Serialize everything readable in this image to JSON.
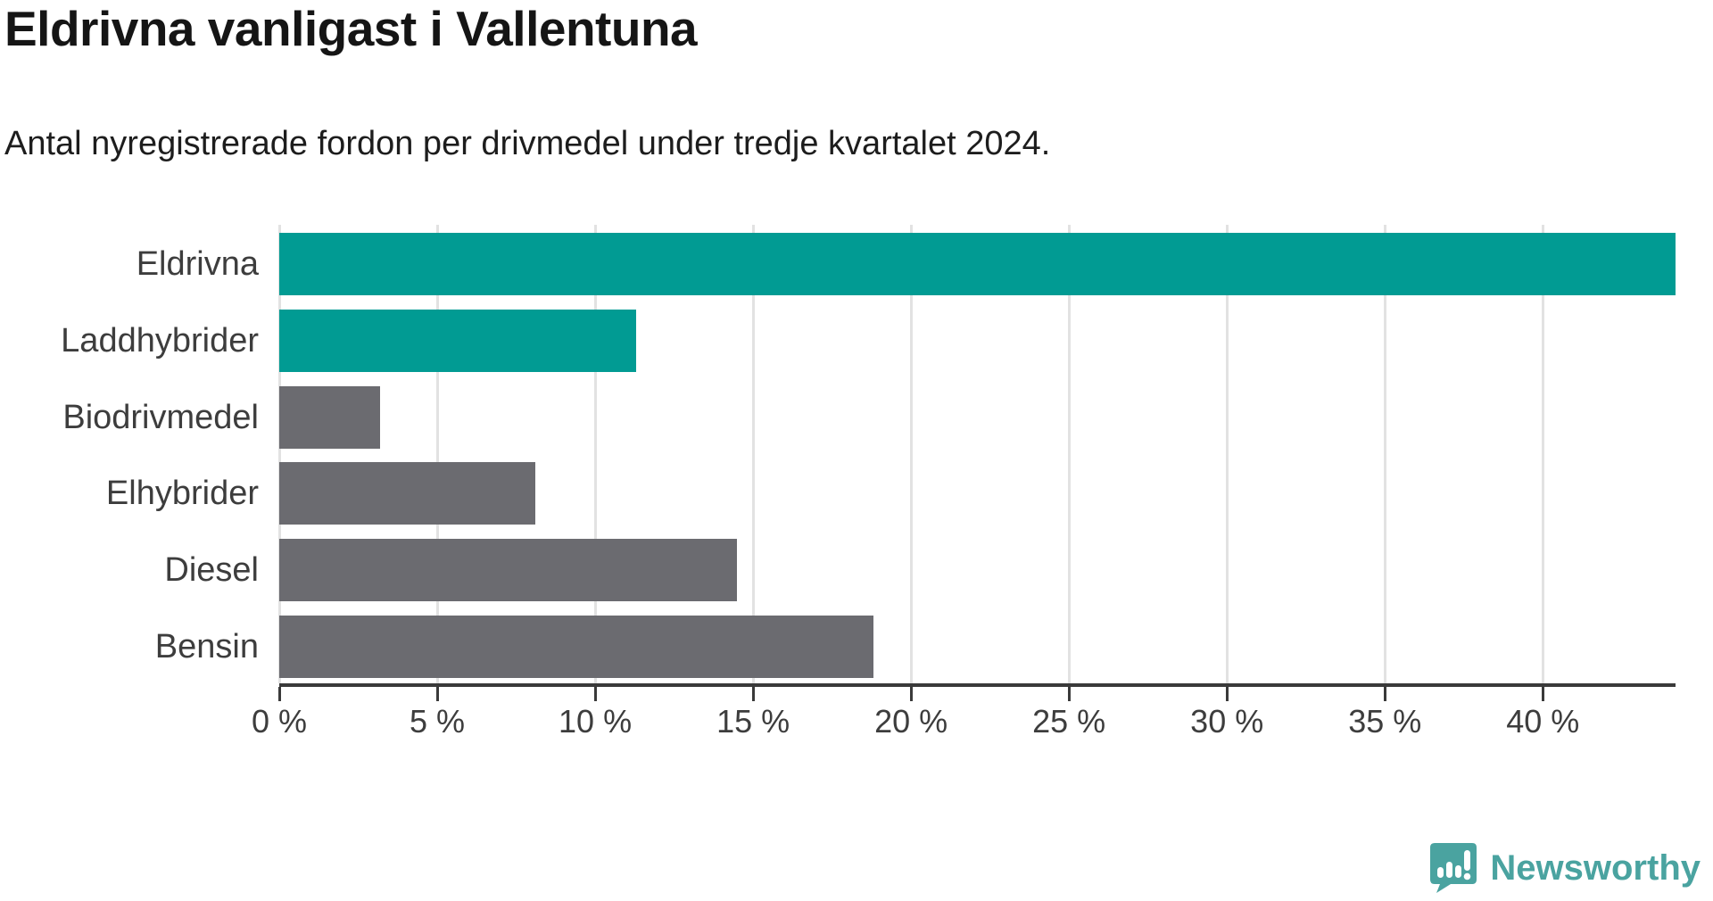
{
  "title": "Eldrivna vanligast i Vallentuna",
  "subtitle": "Antal nyregistrerade fordon per drivmedel under tredje kvartalet 2024.",
  "chart_data": {
    "type": "bar",
    "orientation": "horizontal",
    "title": "Eldrivna vanligast i Vallentuna",
    "subtitle": "Antal nyregistrerade fordon per drivmedel under tredje kvartalet 2024.",
    "categories": [
      "Eldrivna",
      "Laddhybrider",
      "Biodrivmedel",
      "Elhybrider",
      "Diesel",
      "Bensin"
    ],
    "values": [
      44.2,
      11.3,
      3.2,
      8.1,
      14.5,
      18.8
    ],
    "unit": "%",
    "xlim": [
      0,
      44.2
    ],
    "xticks": [
      0,
      5,
      10,
      15,
      20,
      25,
      30,
      35,
      40
    ],
    "xtick_labels": [
      "0 %",
      "5 %",
      "10 %",
      "15 %",
      "20 %",
      "25 %",
      "30 %",
      "35 %",
      "40 %"
    ],
    "grid": true,
    "legend": "none",
    "bar_colors": [
      "#019b93",
      "#019b93",
      "#6b6b70",
      "#6b6b70",
      "#6b6b70",
      "#6b6b70"
    ],
    "highlight_color": "#019b93",
    "default_color": "#6b6b70",
    "gridline_color": "#e2e2e2",
    "axis_color": "#3a3a3a"
  },
  "branding": {
    "logo_text": "Newsworthy",
    "logo_color": "#4aa3a0",
    "logo_icon": "bar-chart-speech-bubble-icon"
  }
}
